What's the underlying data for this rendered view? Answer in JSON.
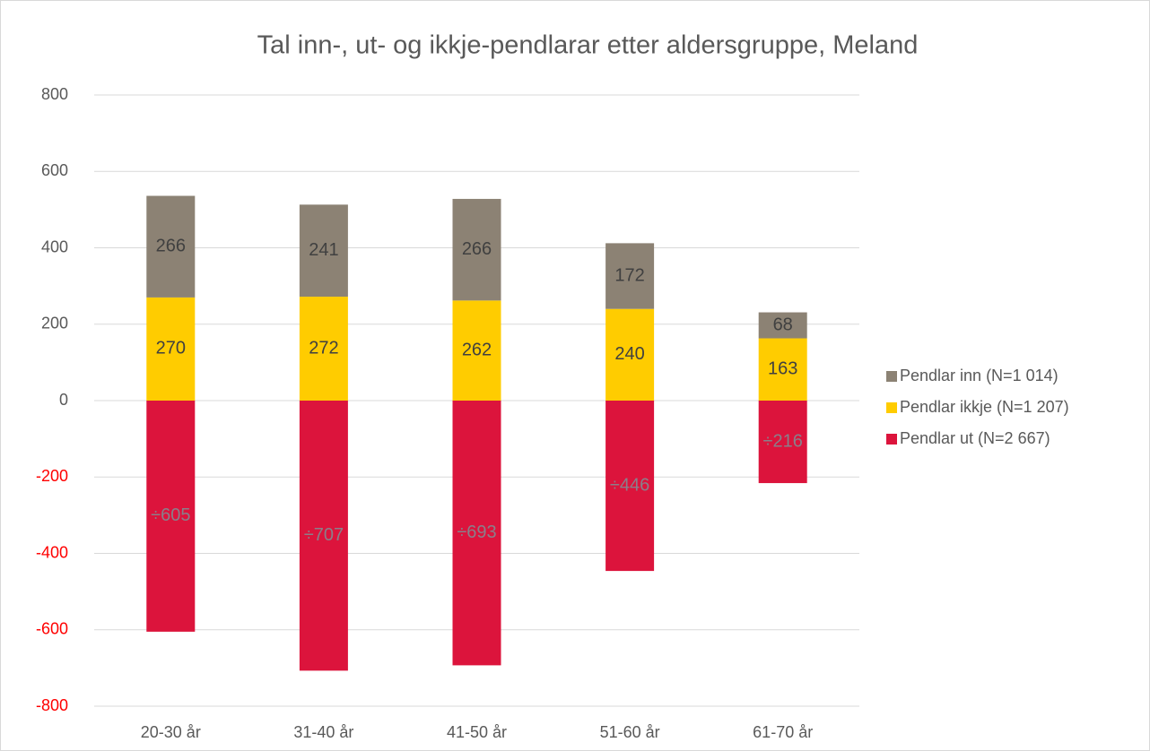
{
  "chart_data": {
    "type": "stacked_bar",
    "title": "Tal inn-, ut- og ikkje-pendlarar etter aldersgruppe, Meland",
    "categories": [
      "20-30 år",
      "31-40 år",
      "41-50 år",
      "51-60 år",
      "61-70 år"
    ],
    "series": [
      {
        "name": "Pendlar inn (N=1 014)",
        "color": "#8c8274",
        "values": [
          266,
          241,
          266,
          172,
          68
        ]
      },
      {
        "name": "Pendlar ikkje (N=1 207)",
        "color": "#ffcc00",
        "values": [
          270,
          272,
          262,
          240,
          163
        ]
      },
      {
        "name": "Pendlar ut (N=2 667)",
        "color": "#dc143c",
        "values": [
          -605,
          -707,
          -693,
          -446,
          -216
        ],
        "value_labels": [
          "÷605",
          "÷707",
          "÷693",
          "÷446",
          "÷216"
        ]
      }
    ],
    "ylim": [
      -800,
      800
    ],
    "yticks": [
      -800,
      -600,
      -400,
      -200,
      0,
      200,
      400,
      600,
      800
    ],
    "negative_tick_color": "#ff0000",
    "grid": true,
    "legend": "right"
  }
}
